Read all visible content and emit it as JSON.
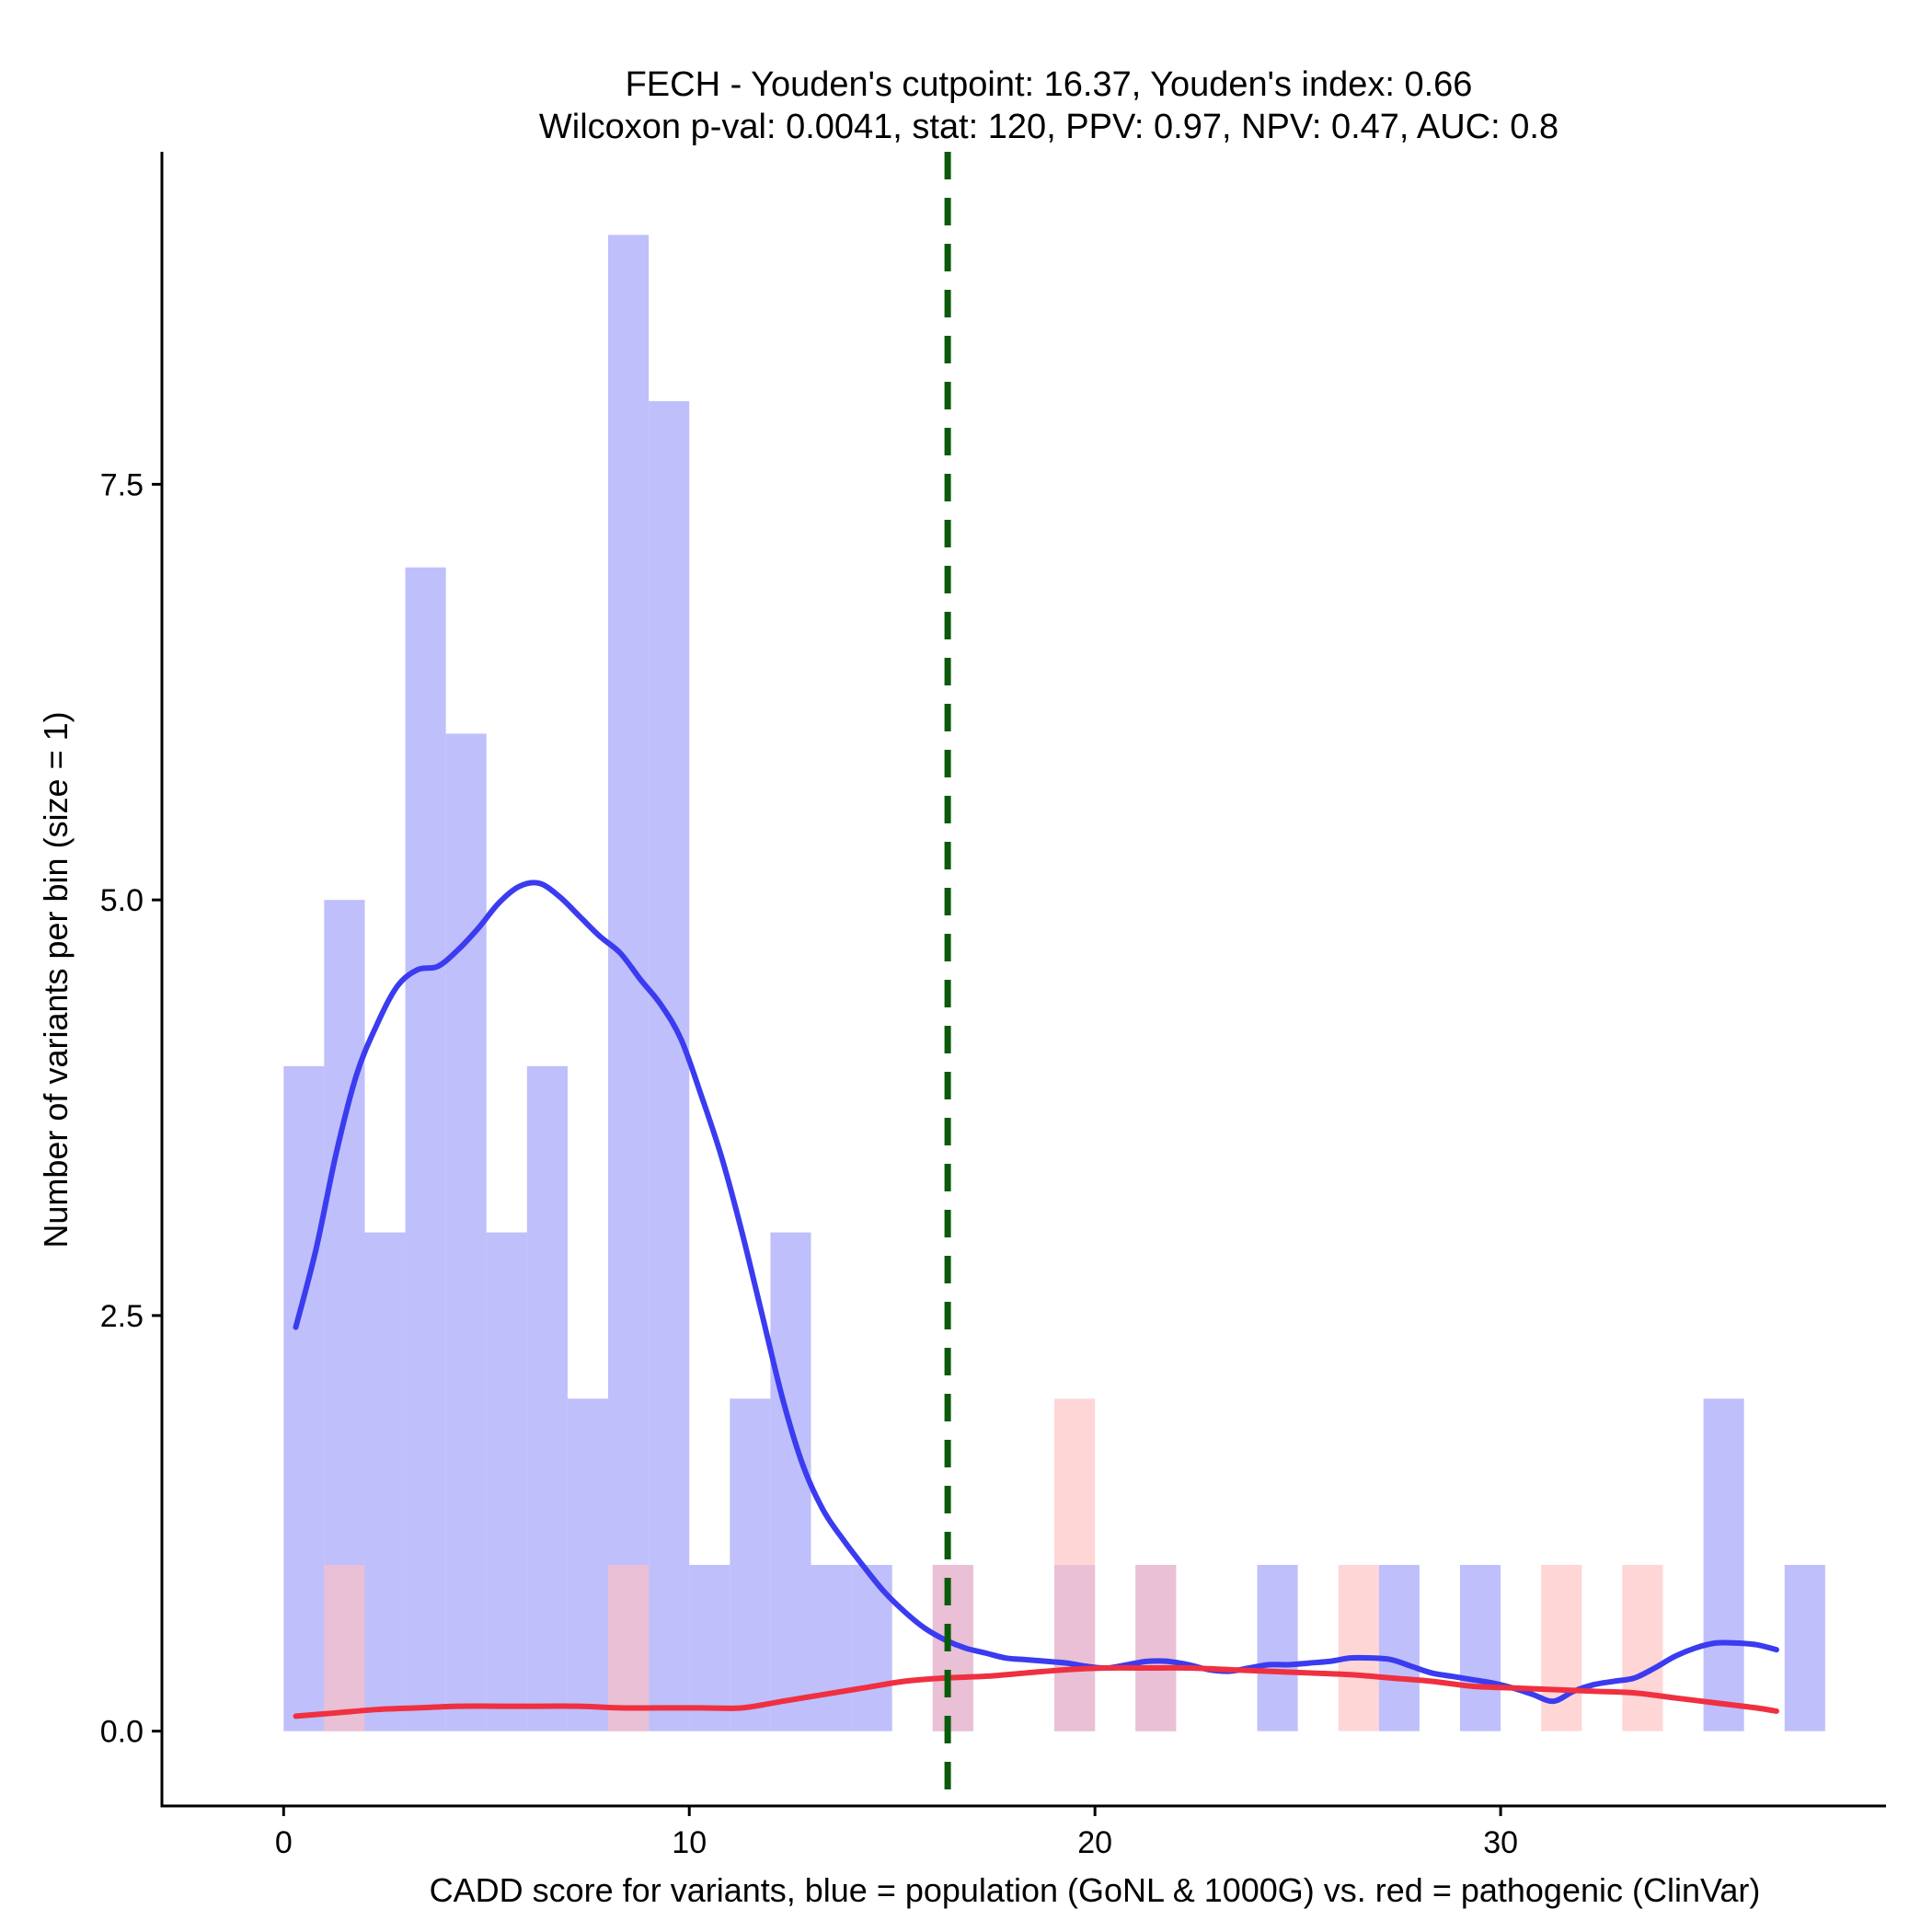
{
  "chart_data": {
    "type": "bar",
    "title_line1": "FECH - Youden's cutpoint: 16.37, Youden's index: 0.66",
    "title_line2": "Wilcoxon p-val: 0.0041, stat: 120, PPV: 0.97, NPV: 0.47, AUC: 0.8",
    "xlabel": "CADD score for variants, blue = population (GoNL & 1000G) vs. red = pathogenic (ClinVar)",
    "ylabel": "Number of variants per bin (size = 1)",
    "xlim": [
      -3,
      39.5
    ],
    "ylim": [
      -0.45,
      9.5
    ],
    "x_ticks": [
      0,
      10,
      20,
      30
    ],
    "x_tick_labels": [
      "0",
      "10",
      "20",
      "30"
    ],
    "y_ticks": [
      0,
      2.5,
      5,
      7.5
    ],
    "y_tick_labels": [
      "0.0",
      "2.5",
      "5.0",
      "7.5"
    ],
    "bin_width": 1,
    "cutpoint": 16.37,
    "grid": false,
    "colors": {
      "population_bar": "#bfbffb",
      "pathogenic_bar": "#ffc0c0",
      "population_curve": "#3b3bf0",
      "pathogenic_curve": "#ef3040",
      "cutpoint_line": "#0a5a0a"
    },
    "series": [
      {
        "key": "population",
        "bin_starts": [
          0,
          1,
          2,
          3,
          4,
          5,
          6,
          7,
          8,
          9,
          10,
          11,
          12,
          13,
          14,
          16,
          19,
          21,
          24,
          27,
          29,
          35,
          37
        ],
        "values": [
          4,
          5,
          3,
          7,
          6,
          3,
          4,
          2,
          9,
          8,
          1,
          2,
          3,
          1,
          1,
          1,
          1,
          1,
          1,
          1,
          1,
          2,
          1
        ]
      },
      {
        "key": "pathogenic",
        "bin_starts": [
          1,
          8,
          16,
          19,
          21,
          26,
          31,
          33
        ],
        "values": [
          1,
          1,
          1,
          2,
          1,
          1,
          1,
          1
        ]
      }
    ],
    "density_curves": [
      {
        "key": "population",
        "x": [
          0.3,
          0.8,
          1.3,
          1.8,
          2.3,
          2.8,
          3.3,
          3.8,
          4.3,
          4.8,
          5.3,
          5.8,
          6.3,
          6.8,
          7.3,
          7.8,
          8.3,
          8.8,
          9.3,
          9.8,
          10.3,
          10.8,
          11.3,
          11.8,
          12.3,
          12.8,
          13.3,
          13.8,
          14.3,
          14.8,
          15.3,
          15.8,
          16.3,
          16.8,
          17.3,
          17.8,
          18.3,
          18.8,
          19.3,
          19.8,
          20.3,
          20.8,
          21.3,
          21.8,
          22.3,
          22.8,
          23.3,
          23.8,
          24.3,
          24.8,
          25.3,
          25.8,
          26.3,
          26.8,
          27.3,
          27.8,
          28.3,
          28.8,
          29.3,
          29.8,
          30.3,
          30.8,
          31.3,
          31.8,
          32.3,
          32.8,
          33.3,
          33.8,
          34.3,
          34.8,
          35.3,
          35.8,
          36.3,
          36.8
        ],
        "y": [
          2.43,
          2.9,
          3.48,
          3.95,
          4.25,
          4.48,
          4.58,
          4.6,
          4.7,
          4.83,
          4.98,
          5.08,
          5.1,
          5.02,
          4.9,
          4.78,
          4.68,
          4.52,
          4.37,
          4.16,
          3.82,
          3.45,
          3.0,
          2.5,
          2.0,
          1.6,
          1.33,
          1.15,
          0.99,
          0.84,
          0.72,
          0.62,
          0.55,
          0.5,
          0.47,
          0.44,
          0.43,
          0.42,
          0.41,
          0.39,
          0.38,
          0.4,
          0.42,
          0.42,
          0.4,
          0.37,
          0.36,
          0.38,
          0.4,
          0.4,
          0.41,
          0.42,
          0.44,
          0.44,
          0.43,
          0.39,
          0.35,
          0.33,
          0.31,
          0.29,
          0.26,
          0.22,
          0.18,
          0.24,
          0.28,
          0.3,
          0.32,
          0.38,
          0.45,
          0.5,
          0.53,
          0.53,
          0.52,
          0.49
        ]
      },
      {
        "key": "pathogenic",
        "x": [
          0.3,
          1.3,
          2.3,
          3.3,
          4.3,
          5.3,
          6.3,
          7.3,
          8.3,
          9.3,
          10.3,
          11.3,
          12.3,
          13.3,
          14.3,
          15.3,
          16.3,
          17.3,
          18.3,
          19.3,
          20.3,
          21.3,
          22.3,
          23.3,
          24.3,
          25.3,
          26.3,
          27.3,
          28.3,
          29.3,
          30.3,
          31.3,
          32.3,
          33.3,
          34.3,
          35.3,
          36.3,
          36.8
        ],
        "y": [
          0.09,
          0.11,
          0.13,
          0.14,
          0.15,
          0.15,
          0.15,
          0.15,
          0.14,
          0.14,
          0.14,
          0.14,
          0.18,
          0.22,
          0.26,
          0.3,
          0.32,
          0.33,
          0.35,
          0.37,
          0.38,
          0.38,
          0.38,
          0.37,
          0.36,
          0.35,
          0.34,
          0.32,
          0.3,
          0.27,
          0.26,
          0.25,
          0.24,
          0.23,
          0.2,
          0.17,
          0.14,
          0.12
        ]
      }
    ]
  }
}
